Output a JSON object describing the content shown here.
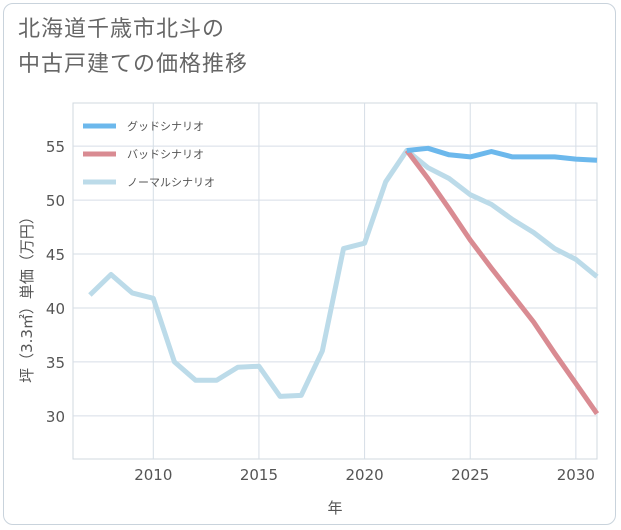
{
  "title_lines": [
    "北海道千歳市北斗の",
    "中古戸建ての価格推移"
  ],
  "chart_data": {
    "type": "line",
    "xlabel": "年",
    "ylabel": "坪（3.3㎡）単価（万円）",
    "xlim": [
      2006.2,
      2031
    ],
    "ylim": [
      26,
      59
    ],
    "x_ticks": [
      2010,
      2015,
      2020,
      2025,
      2030
    ],
    "y_ticks": [
      30,
      35,
      40,
      45,
      50,
      55
    ],
    "grid": true,
    "legend_position": "top-left",
    "series": [
      {
        "name": "グッドシナリオ",
        "color": "#6cb8ec",
        "x": [
          2022,
          2023,
          2024,
          2025,
          2026,
          2027,
          2028,
          2029,
          2030,
          2031
        ],
        "y": [
          54.6,
          54.8,
          54.2,
          54.0,
          54.5,
          54.0,
          54.0,
          54.0,
          53.8,
          53.7
        ]
      },
      {
        "name": "バッドシナリオ",
        "color": "#d98b92",
        "x": [
          2022,
          2023,
          2024,
          2025,
          2026,
          2027,
          2028,
          2029,
          2030,
          2031
        ],
        "y": [
          54.6,
          52.0,
          49.2,
          46.3,
          43.7,
          41.2,
          38.7,
          35.8,
          33.0,
          30.2
        ]
      },
      {
        "name": "ノーマルシナリオ",
        "color": "#bcdbe9",
        "x": [
          2007,
          2008,
          2009,
          2010,
          2011,
          2012,
          2013,
          2014,
          2015,
          2016,
          2017,
          2018,
          2019,
          2020,
          2021,
          2022,
          2023,
          2024,
          2025,
          2026,
          2027,
          2028,
          2029,
          2030,
          2031
        ],
        "y": [
          41.2,
          43.1,
          41.4,
          40.9,
          35.0,
          33.3,
          33.3,
          34.5,
          34.6,
          31.8,
          31.9,
          36.0,
          45.5,
          46.0,
          51.7,
          54.6,
          53.0,
          52.0,
          50.5,
          49.6,
          48.2,
          47.0,
          45.5,
          44.5,
          42.9
        ]
      }
    ]
  }
}
